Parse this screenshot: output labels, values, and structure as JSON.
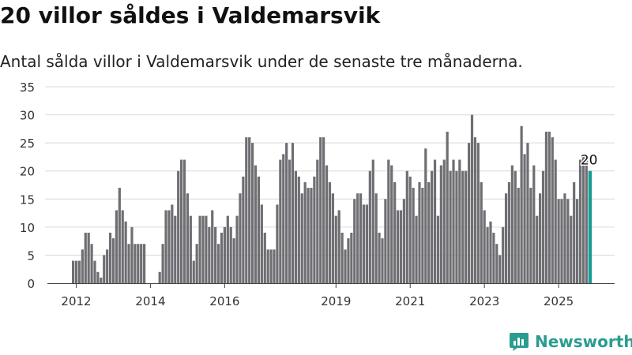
{
  "title": "20 villor såldes i Valdemarsvik",
  "subtitle": "Antal sålda villor i Valdemarsvik under de senaste tre månaderna.",
  "brand": {
    "name": "Newsworthy",
    "icon": "newsworthy-logo-icon"
  },
  "colors": {
    "bar": "#6e6e73",
    "highlight": "#1a9c92",
    "grid": "#d9d9d9",
    "text": "#333333"
  },
  "chart_data": {
    "type": "bar",
    "title": "20 villor såldes i Valdemarsvik",
    "subtitle": "Antal sålda villor i Valdemarsvik under de senaste tre månaderna.",
    "xlabel": "",
    "ylabel": "",
    "ylim": [
      0,
      35
    ],
    "yticks": [
      0,
      5,
      10,
      15,
      20,
      25,
      30,
      35
    ],
    "xticks": [
      "2012",
      "2014",
      "2016",
      "2019",
      "2021",
      "2023",
      "2025"
    ],
    "grid": true,
    "legend": "none",
    "series": [
      {
        "values": [
          4,
          4,
          4,
          6,
          9,
          9,
          7,
          4,
          2,
          1,
          5,
          6,
          9,
          8,
          13,
          17,
          13,
          11,
          7,
          10,
          7,
          7,
          7,
          7,
          0,
          0,
          0,
          0,
          2,
          7,
          13,
          13,
          14,
          12,
          20,
          22,
          22,
          16,
          12,
          4,
          7,
          12,
          12,
          12,
          10,
          13,
          10,
          7,
          9,
          10,
          12,
          10,
          8,
          12,
          16,
          19,
          26,
          26,
          25,
          21,
          19,
          14,
          9,
          6,
          6,
          6,
          14,
          22,
          23,
          25,
          22,
          25,
          20,
          19,
          16,
          18,
          17,
          17,
          19,
          22,
          26,
          26,
          21,
          18,
          16,
          12,
          13,
          9,
          6,
          8,
          9,
          15,
          16,
          16,
          14,
          14,
          20,
          22,
          16,
          9,
          8,
          15,
          22,
          21,
          18,
          13,
          13,
          15,
          20,
          19,
          17,
          12,
          18,
          17,
          24,
          18,
          20,
          22,
          12,
          21,
          22,
          27,
          20,
          22,
          20,
          22,
          20,
          20,
          25,
          30,
          26,
          25,
          18,
          13,
          10,
          11,
          9,
          7,
          5,
          10,
          16,
          18,
          21,
          20,
          17,
          28,
          23,
          25,
          17,
          21,
          12,
          16,
          20,
          27,
          27,
          26,
          22,
          15,
          15,
          16,
          15,
          12,
          18,
          15,
          22,
          23,
          22,
          20
        ],
        "highlight_index": 167,
        "highlight_label": "20",
        "first_date": "2011-12",
        "interval": "month"
      }
    ]
  }
}
